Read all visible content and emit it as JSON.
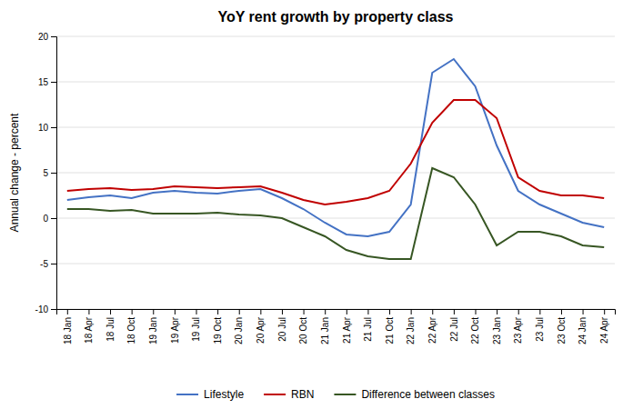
{
  "chart_data": {
    "type": "line",
    "title": "YoY rent growth by property class",
    "y_label": "Annual change - percent",
    "categories": [
      "18 Jan",
      "18 Apr",
      "18 Jul",
      "18 Oct",
      "19 Jan",
      "19 Apr",
      "19 Jul",
      "19 Oct",
      "20 Jan",
      "20 Apr",
      "20 Jul",
      "20 Oct",
      "21 Jan",
      "21 Apr",
      "21 Jul",
      "21 Oct",
      "22 Jan",
      "22 Apr",
      "22 Jul",
      "22 Oct",
      "23 Jan",
      "23 Apr",
      "23 Jul",
      "23 Oct",
      "24 Jan",
      "24 Apr"
    ],
    "series": [
      {
        "name": "Lifestyle",
        "color": "#4472C4",
        "values": [
          2.0,
          2.3,
          2.5,
          2.2,
          2.8,
          3.0,
          2.8,
          2.7,
          3.0,
          3.2,
          2.2,
          1.0,
          -0.5,
          -1.8,
          -2.0,
          -1.5,
          1.5,
          16.0,
          17.5,
          14.5,
          8.0,
          3.0,
          1.5,
          0.5,
          -0.5,
          -1.0
        ]
      },
      {
        "name": "RBN",
        "color": "#C00000",
        "values": [
          3.0,
          3.2,
          3.3,
          3.1,
          3.2,
          3.5,
          3.4,
          3.3,
          3.4,
          3.5,
          2.8,
          2.0,
          1.5,
          1.8,
          2.2,
          3.0,
          6.0,
          10.5,
          13.0,
          13.0,
          11.0,
          4.5,
          3.0,
          2.5,
          2.5,
          2.2
        ]
      },
      {
        "name": "Difference between classes",
        "color": "#375623",
        "values": [
          1.0,
          1.0,
          0.8,
          0.9,
          0.5,
          0.5,
          0.5,
          0.6,
          0.4,
          0.3,
          0.0,
          -1.0,
          -2.0,
          -3.5,
          -4.2,
          -4.5,
          -4.5,
          5.5,
          4.5,
          1.5,
          -3.0,
          -1.5,
          -1.5,
          -2.0,
          -3.0,
          -3.2
        ]
      }
    ],
    "ylim": [
      -10,
      20
    ],
    "yticks": [
      -10,
      -5,
      0,
      5,
      10,
      15,
      20
    ],
    "grid": true,
    "legend": "bottom"
  }
}
